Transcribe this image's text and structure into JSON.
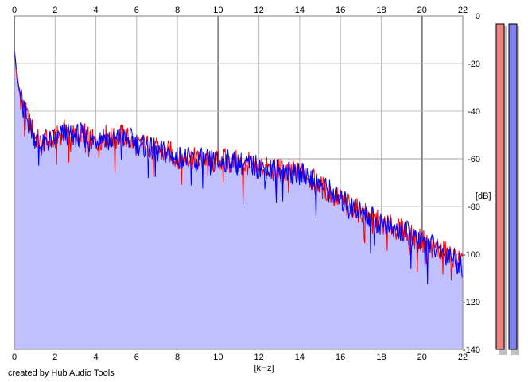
{
  "chart_data": {
    "type": "area",
    "xlabel": "[kHz]",
    "ylabel": "[dB]",
    "xlim": [
      0,
      22
    ],
    "ylim": [
      -140,
      0
    ],
    "x_ticks": [
      "0",
      "2",
      "4",
      "6",
      "8",
      "10",
      "12",
      "14",
      "16",
      "18",
      "20",
      "22"
    ],
    "y_ticks": [
      "0",
      "-20",
      "-40",
      "-60",
      "-80",
      "-100",
      "-120",
      "-140"
    ],
    "grid": true,
    "x": [
      0,
      0.1,
      0.2,
      0.4,
      0.6,
      0.8,
      1.0,
      1.3,
      1.6,
      1.9,
      2.2,
      2.5,
      2.8,
      3.1,
      3.4,
      3.7,
      4.0,
      4.3,
      4.6,
      4.9,
      5.2,
      5.5,
      5.8,
      6.1,
      6.4,
      6.7,
      7.0,
      7.3,
      7.6,
      7.9,
      8.2,
      8.5,
      8.8,
      9.1,
      9.4,
      9.7,
      10.0,
      10.3,
      10.6,
      10.9,
      11.2,
      11.5,
      11.8,
      12.1,
      12.4,
      12.7,
      13.0,
      13.3,
      13.6,
      13.9,
      14.2,
      14.5,
      14.8,
      15.1,
      15.4,
      15.7,
      16.0,
      16.3,
      16.6,
      16.9,
      17.2,
      17.5,
      17.8,
      18.1,
      18.4,
      18.7,
      19.0,
      19.3,
      19.6,
      19.9,
      20.2,
      20.5,
      20.8,
      21.1,
      21.4,
      21.7,
      22.0
    ],
    "series": [
      {
        "color": "#ff0000",
        "values": [
          -14,
          -24,
          -30,
          -38,
          -42,
          -46,
          -50,
          -54,
          -52,
          -53,
          -50,
          -48,
          -50,
          -51,
          -49,
          -52,
          -53,
          -51,
          -50,
          -52,
          -50,
          -51,
          -53,
          -55,
          -54,
          -55,
          -56,
          -58,
          -57,
          -59,
          -60,
          -59,
          -60,
          -61,
          -60,
          -62,
          -61,
          -60,
          -62,
          -61,
          -63,
          -62,
          -64,
          -63,
          -64,
          -65,
          -64,
          -66,
          -65,
          -66,
          -65,
          -68,
          -70,
          -72,
          -74,
          -76,
          -77,
          -79,
          -80,
          -82,
          -83,
          -85,
          -86,
          -88,
          -88,
          -89,
          -90,
          -92,
          -93,
          -94,
          -95,
          -97,
          -98,
          -99,
          -101,
          -102,
          -104
        ]
      },
      {
        "color": "#0000ff",
        "values": [
          -12,
          -22,
          -29,
          -37,
          -43,
          -47,
          -51,
          -55,
          -53,
          -52,
          -51,
          -49,
          -51,
          -50,
          -50,
          -53,
          -52,
          -50,
          -51,
          -53,
          -51,
          -52,
          -52,
          -54,
          -55,
          -56,
          -57,
          -57,
          -58,
          -60,
          -59,
          -60,
          -61,
          -60,
          -61,
          -61,
          -62,
          -61,
          -61,
          -62,
          -62,
          -63,
          -63,
          -64,
          -65,
          -64,
          -65,
          -65,
          -66,
          -67,
          -66,
          -67,
          -71,
          -71,
          -73,
          -75,
          -78,
          -78,
          -81,
          -81,
          -84,
          -84,
          -87,
          -87,
          -89,
          -90,
          -91,
          -91,
          -94,
          -95,
          -96,
          -96,
          -99,
          -100,
          -100,
          -103,
          -105
        ]
      }
    ],
    "fill_color": "#c0c0ff",
    "meters": [
      {
        "color": "#f08080"
      },
      {
        "color": "#8080f0"
      }
    ]
  },
  "credit": "created by Hub Audio Tools"
}
